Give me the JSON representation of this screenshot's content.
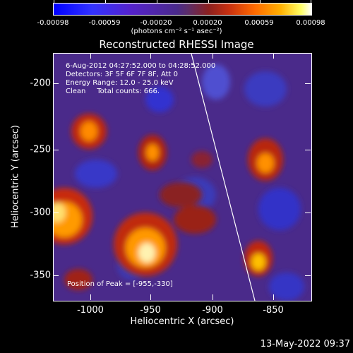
{
  "colorbar": {
    "ticks": [
      "-0.00098",
      "-0.00059",
      "-0.00020",
      "0.00020",
      "0.00059",
      "0.00098"
    ],
    "unit_text": "(photons cm⁻² s⁻¹ asec⁻²)"
  },
  "title": "Reconstructed RHESSI Image",
  "info": {
    "time_range": "6-Aug-2012 04:27:52.000 to 04:28:52.000",
    "detectors": "Detectors: 3F 5F 6F 7F 8F, Att 0",
    "energy": "Energy Range: 12.0 - 25.0 keV",
    "clean": "Clean     Total counts: 666."
  },
  "peak_text": "Position of Peak = [-955,-330]",
  "axes": {
    "xlabel": "Heliocentric X (arcsec)",
    "ylabel": "Heliocentric Y (arcsec)",
    "xticks": [
      "-1000",
      "-950",
      "-900",
      "-850"
    ],
    "yticks": [
      "-200",
      "-250",
      "-300",
      "-350"
    ]
  },
  "timestamp": "13-May-2022 09:37",
  "colors": {
    "background": "#000000",
    "text": "#ffffff",
    "limb": "#ffffff"
  }
}
